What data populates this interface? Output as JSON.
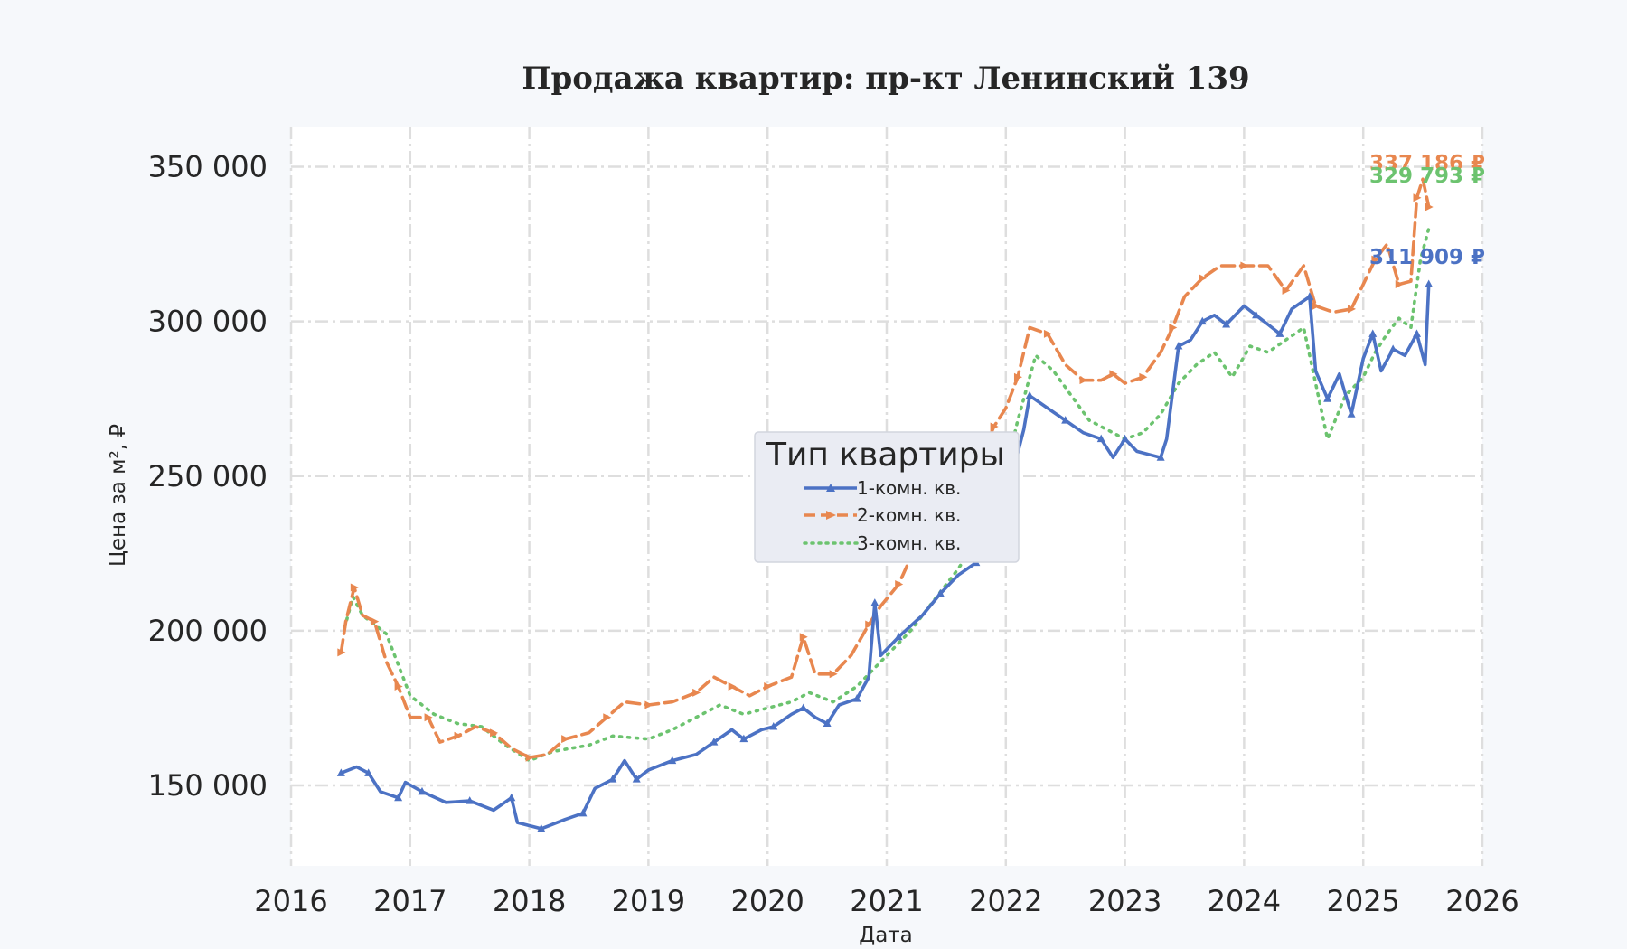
{
  "chart_data": {
    "type": "line",
    "title": "Продажа квартир: пр-кт Ленинский 139",
    "xlabel": "Дата",
    "ylabel": "Цена за м², ₽",
    "xlim": [
      2016.0,
      2026.0
    ],
    "ylim": [
      124000,
      363000
    ],
    "x_ticks": [
      2016,
      2017,
      2018,
      2019,
      2020,
      2021,
      2022,
      2023,
      2024,
      2025,
      2026
    ],
    "x_tick_labels": [
      "2016",
      "2017",
      "2018",
      "2019",
      "2020",
      "2021",
      "2022",
      "2023",
      "2024",
      "2025",
      "2026"
    ],
    "y_ticks": [
      150000,
      200000,
      250000,
      300000,
      350000
    ],
    "y_tick_labels": [
      "150 000",
      "200 000",
      "250 000",
      "300 000",
      "350 000"
    ],
    "grid": true,
    "legend": {
      "title": "Тип квартиры",
      "position": "center"
    },
    "series": [
      {
        "name": "1-комн. кв.",
        "color": "#4c72c4",
        "style": "solid-triangle",
        "end_label": "311 909 ₽",
        "end_value": 311909,
        "points": [
          [
            2016.42,
            154000
          ],
          [
            2016.55,
            156000
          ],
          [
            2016.65,
            154000
          ],
          [
            2016.75,
            148000
          ],
          [
            2016.9,
            146000
          ],
          [
            2016.96,
            151000
          ],
          [
            2017.1,
            148000
          ],
          [
            2017.3,
            144500
          ],
          [
            2017.5,
            145000
          ],
          [
            2017.7,
            142000
          ],
          [
            2017.85,
            146000
          ],
          [
            2017.9,
            138000
          ],
          [
            2018.1,
            136000
          ],
          [
            2018.3,
            139000
          ],
          [
            2018.45,
            141000
          ],
          [
            2018.55,
            149000
          ],
          [
            2018.7,
            152000
          ],
          [
            2018.8,
            158000
          ],
          [
            2018.9,
            152000
          ],
          [
            2019.0,
            155000
          ],
          [
            2019.2,
            158000
          ],
          [
            2019.4,
            160000
          ],
          [
            2019.55,
            164000
          ],
          [
            2019.7,
            168000
          ],
          [
            2019.8,
            165000
          ],
          [
            2019.95,
            168000
          ],
          [
            2020.05,
            169000
          ],
          [
            2020.2,
            173000
          ],
          [
            2020.3,
            175000
          ],
          [
            2020.4,
            172000
          ],
          [
            2020.5,
            170000
          ],
          [
            2020.6,
            176000
          ],
          [
            2020.75,
            178000
          ],
          [
            2020.85,
            185000
          ],
          [
            2020.9,
            209000
          ],
          [
            2020.95,
            192000
          ],
          [
            2021.1,
            198000
          ],
          [
            2021.3,
            205000
          ],
          [
            2021.45,
            212000
          ],
          [
            2021.6,
            218000
          ],
          [
            2021.75,
            222000
          ],
          [
            2021.9,
            235000
          ],
          [
            2022.05,
            250000
          ],
          [
            2022.15,
            265000
          ],
          [
            2022.2,
            276000
          ],
          [
            2022.35,
            272000
          ],
          [
            2022.5,
            268000
          ],
          [
            2022.65,
            264000
          ],
          [
            2022.8,
            262000
          ],
          [
            2022.9,
            256000
          ],
          [
            2023.0,
            262000
          ],
          [
            2023.1,
            258000
          ],
          [
            2023.3,
            256000
          ],
          [
            2023.35,
            262000
          ],
          [
            2023.45,
            292000
          ],
          [
            2023.55,
            294000
          ],
          [
            2023.65,
            300000
          ],
          [
            2023.75,
            302000
          ],
          [
            2023.85,
            299000
          ],
          [
            2024.0,
            305000
          ],
          [
            2024.1,
            302000
          ],
          [
            2024.2,
            299000
          ],
          [
            2024.3,
            296000
          ],
          [
            2024.4,
            304000
          ],
          [
            2024.55,
            308000
          ],
          [
            2024.6,
            284000
          ],
          [
            2024.7,
            275000
          ],
          [
            2024.8,
            283000
          ],
          [
            2024.9,
            270000
          ],
          [
            2025.0,
            288000
          ],
          [
            2025.08,
            296000
          ],
          [
            2025.15,
            284000
          ],
          [
            2025.25,
            291000
          ],
          [
            2025.35,
            289000
          ],
          [
            2025.45,
            296000
          ],
          [
            2025.52,
            286000
          ],
          [
            2025.55,
            312000
          ]
        ]
      },
      {
        "name": "2-комн. кв.",
        "color": "#e8874f",
        "style": "dashed-arrow",
        "end_label": "337 186 ₽",
        "end_value": 337186,
        "points": [
          [
            2016.42,
            193000
          ],
          [
            2016.46,
            203000
          ],
          [
            2016.53,
            214000
          ],
          [
            2016.6,
            205000
          ],
          [
            2016.7,
            203000
          ],
          [
            2016.8,
            190000
          ],
          [
            2016.9,
            182000
          ],
          [
            2017.0,
            172000
          ],
          [
            2017.15,
            172000
          ],
          [
            2017.25,
            164000
          ],
          [
            2017.4,
            166000
          ],
          [
            2017.55,
            169000
          ],
          [
            2017.7,
            167000
          ],
          [
            2017.85,
            162000
          ],
          [
            2018.0,
            159000
          ],
          [
            2018.15,
            160000
          ],
          [
            2018.3,
            165000
          ],
          [
            2018.5,
            167000
          ],
          [
            2018.65,
            172000
          ],
          [
            2018.8,
            177000
          ],
          [
            2019.0,
            176000
          ],
          [
            2019.2,
            177000
          ],
          [
            2019.4,
            180000
          ],
          [
            2019.55,
            185000
          ],
          [
            2019.7,
            182000
          ],
          [
            2019.85,
            179000
          ],
          [
            2020.0,
            182000
          ],
          [
            2020.2,
            185000
          ],
          [
            2020.3,
            198000
          ],
          [
            2020.4,
            186000
          ],
          [
            2020.55,
            186000
          ],
          [
            2020.7,
            192000
          ],
          [
            2020.85,
            202000
          ],
          [
            2020.95,
            208000
          ],
          [
            2021.1,
            215000
          ],
          [
            2021.3,
            232000
          ],
          [
            2021.5,
            240000
          ],
          [
            2021.7,
            248000
          ],
          [
            2021.9,
            266000
          ],
          [
            2022.0,
            272000
          ],
          [
            2022.1,
            282000
          ],
          [
            2022.2,
            298000
          ],
          [
            2022.35,
            296000
          ],
          [
            2022.5,
            286000
          ],
          [
            2022.65,
            281000
          ],
          [
            2022.8,
            281000
          ],
          [
            2022.9,
            283000
          ],
          [
            2023.0,
            280000
          ],
          [
            2023.15,
            282000
          ],
          [
            2023.3,
            290000
          ],
          [
            2023.4,
            298000
          ],
          [
            2023.5,
            308000
          ],
          [
            2023.65,
            314000
          ],
          [
            2023.8,
            318000
          ],
          [
            2024.0,
            318000
          ],
          [
            2024.2,
            318000
          ],
          [
            2024.35,
            310000
          ],
          [
            2024.5,
            318000
          ],
          [
            2024.6,
            305000
          ],
          [
            2024.75,
            303000
          ],
          [
            2024.9,
            304000
          ],
          [
            2025.0,
            312000
          ],
          [
            2025.1,
            320000
          ],
          [
            2025.2,
            325000
          ],
          [
            2025.3,
            312000
          ],
          [
            2025.4,
            313000
          ],
          [
            2025.45,
            340000
          ],
          [
            2025.5,
            346000
          ],
          [
            2025.55,
            337000
          ]
        ]
      },
      {
        "name": "3-комн. кв.",
        "color": "#6cc36f",
        "style": "dotted",
        "end_label": "329 793 ₽",
        "end_value": 329793,
        "points": [
          [
            2016.45,
            201000
          ],
          [
            2016.52,
            211000
          ],
          [
            2016.6,
            205000
          ],
          [
            2016.7,
            202000
          ],
          [
            2016.8,
            199000
          ],
          [
            2016.9,
            189000
          ],
          [
            2017.0,
            179000
          ],
          [
            2017.2,
            173000
          ],
          [
            2017.4,
            170000
          ],
          [
            2017.6,
            169000
          ],
          [
            2017.8,
            163000
          ],
          [
            2018.0,
            158000
          ],
          [
            2018.2,
            161000
          ],
          [
            2018.5,
            163000
          ],
          [
            2018.7,
            166000
          ],
          [
            2019.0,
            165000
          ],
          [
            2019.2,
            168000
          ],
          [
            2019.4,
            172000
          ],
          [
            2019.6,
            176000
          ],
          [
            2019.8,
            173000
          ],
          [
            2020.0,
            175000
          ],
          [
            2020.2,
            177000
          ],
          [
            2020.35,
            180000
          ],
          [
            2020.55,
            177000
          ],
          [
            2020.75,
            182000
          ],
          [
            2021.0,
            192000
          ],
          [
            2021.2,
            200000
          ],
          [
            2021.4,
            210000
          ],
          [
            2021.6,
            220000
          ],
          [
            2021.8,
            232000
          ],
          [
            2022.0,
            252000
          ],
          [
            2022.1,
            268000
          ],
          [
            2022.25,
            289000
          ],
          [
            2022.4,
            284000
          ],
          [
            2022.55,
            276000
          ],
          [
            2022.7,
            268000
          ],
          [
            2022.85,
            265000
          ],
          [
            2023.0,
            262000
          ],
          [
            2023.15,
            264000
          ],
          [
            2023.3,
            270000
          ],
          [
            2023.45,
            280000
          ],
          [
            2023.6,
            286000
          ],
          [
            2023.75,
            290000
          ],
          [
            2023.9,
            282000
          ],
          [
            2024.05,
            292000
          ],
          [
            2024.2,
            290000
          ],
          [
            2024.35,
            294000
          ],
          [
            2024.5,
            298000
          ],
          [
            2024.6,
            280000
          ],
          [
            2024.7,
            262000
          ],
          [
            2024.85,
            276000
          ],
          [
            2025.0,
            282000
          ],
          [
            2025.1,
            290000
          ],
          [
            2025.2,
            296000
          ],
          [
            2025.3,
            301000
          ],
          [
            2025.4,
            298000
          ],
          [
            2025.48,
            320000
          ],
          [
            2025.55,
            330000
          ]
        ]
      }
    ]
  }
}
